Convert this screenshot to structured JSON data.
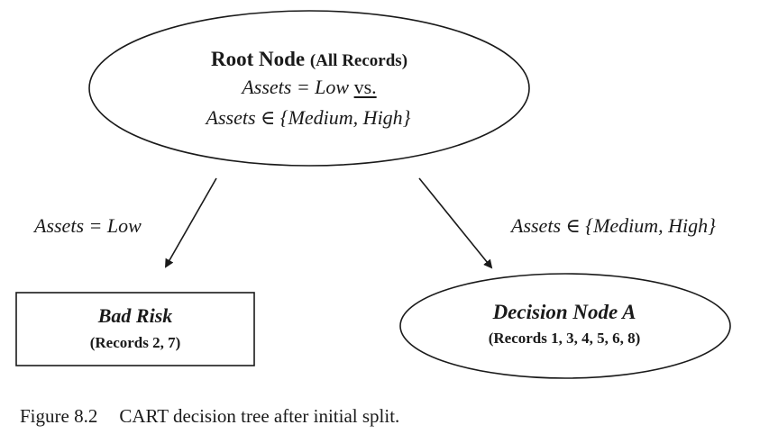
{
  "root": {
    "title": "Root Node",
    "title_note": "(All Records)",
    "line1_expr": "Assets = Low",
    "line1_vs": "vs.",
    "line2_expr": "Assets ∈ {Medium, High}"
  },
  "edges": {
    "left_label": "Assets = Low",
    "right_label": "Assets ∈ {Medium, High}"
  },
  "leaf": {
    "title": "Bad Risk",
    "records": "(Records 2, 7)"
  },
  "decision_node": {
    "title": "Decision Node A",
    "records": "(Records 1, 3, 4, 5, 6, 8)"
  },
  "caption": {
    "number": "Figure 8.2",
    "text": "CART decision tree after initial split."
  }
}
